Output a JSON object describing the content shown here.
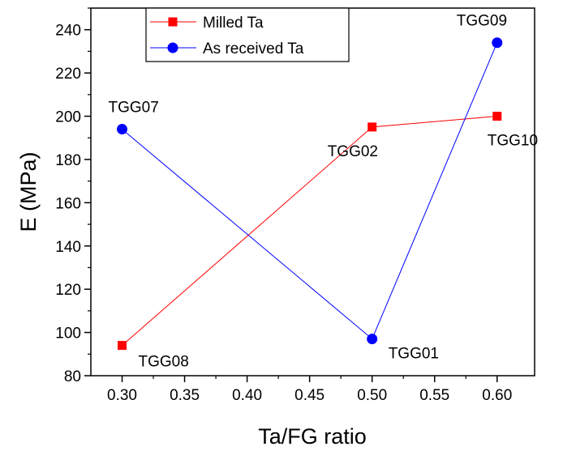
{
  "chart_data": {
    "type": "line",
    "title": "",
    "xlabel": "Ta/FG ratio",
    "ylabel": "E (MPa)",
    "xlim": [
      0.275,
      0.63
    ],
    "ylim": [
      80,
      250
    ],
    "xticks": [
      "0.30",
      "0.35",
      "0.40",
      "0.45",
      "0.50",
      "0.55",
      "0.60"
    ],
    "yticks": [
      "80",
      "100",
      "120",
      "140",
      "160",
      "180",
      "200",
      "220",
      "240"
    ],
    "grid": false,
    "legend_position": "top-left",
    "series": [
      {
        "name": "Milled Ta",
        "color": "#ff0000",
        "marker": "square",
        "points": [
          {
            "x": 0.3,
            "y": 94,
            "label": "TGG08"
          },
          {
            "x": 0.5,
            "y": 195,
            "label": "TGG02"
          },
          {
            "x": 0.6,
            "y": 200,
            "label": "TGG10"
          }
        ]
      },
      {
        "name": "As received Ta",
        "color": "#0000ff",
        "marker": "circle",
        "points": [
          {
            "x": 0.3,
            "y": 194,
            "label": "TGG07"
          },
          {
            "x": 0.5,
            "y": 97,
            "label": "TGG01"
          },
          {
            "x": 0.6,
            "y": 234,
            "label": "TGG09"
          }
        ]
      }
    ]
  }
}
